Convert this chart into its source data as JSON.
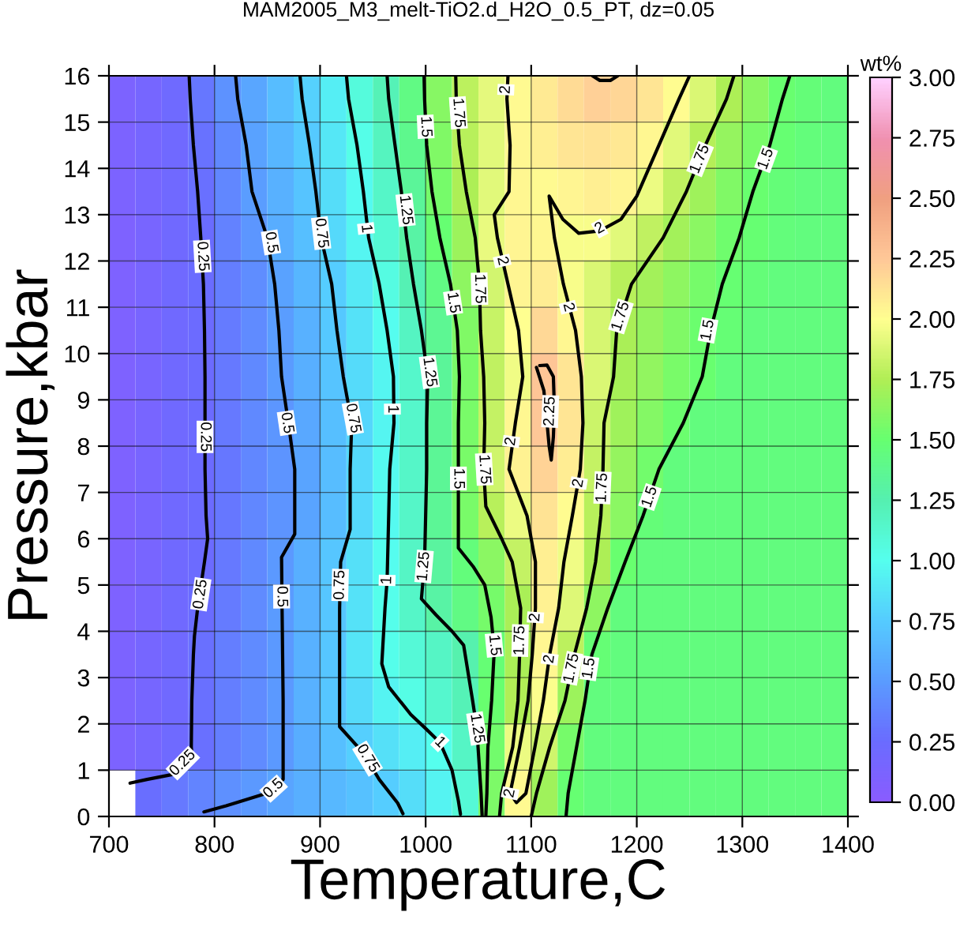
{
  "chart_data": {
    "type": "heatmap",
    "title": "MAM2005_M3_melt-TiO2.d_H2O_0.5_PT, dz=0.05",
    "xlabel": "Temperature,C",
    "ylabel": "Pressure,kbar",
    "clabel": "wt%",
    "x": [
      712.5,
      737.5,
      762.5,
      787.5,
      812.5,
      837.5,
      862.5,
      887.5,
      912.5,
      937.5,
      962.5,
      987.5,
      1012.5,
      1037.5,
      1062.5,
      1087.5,
      1112.5,
      1137.5,
      1162.5,
      1187.5,
      1212.5,
      1237.5,
      1262.5,
      1287.5,
      1312.5,
      1337.5,
      1362.5,
      1387.5
    ],
    "y": [
      15.5,
      14.5,
      13.5,
      12.5,
      11.5,
      10.5,
      9.5,
      8.5,
      7.5,
      6.5,
      5.5,
      4.5,
      3.5,
      2.5,
      1.5,
      0.5
    ],
    "cells": [
      [
        0.11,
        0.16,
        0.22,
        0.31,
        0.45,
        0.56,
        0.67,
        0.78,
        0.92,
        1.07,
        1.23,
        1.42,
        1.61,
        1.79,
        1.92,
        2.02,
        2.09,
        2.16,
        2.21,
        2.19,
        2.11,
        2.01,
        1.88,
        1.74,
        1.62,
        1.5,
        1.47,
        1.45
      ],
      [
        0.11,
        0.16,
        0.21,
        0.29,
        0.41,
        0.53,
        0.64,
        0.74,
        0.88,
        1.02,
        1.19,
        1.39,
        1.59,
        1.78,
        1.91,
        2.03,
        2.07,
        2.11,
        2.13,
        2.1,
        2.03,
        1.91,
        1.76,
        1.66,
        1.56,
        1.49,
        1.46,
        1.45
      ],
      [
        0.11,
        0.16,
        0.21,
        0.27,
        0.39,
        0.51,
        0.61,
        0.71,
        0.84,
        0.98,
        1.15,
        1.34,
        1.55,
        1.74,
        1.9,
        2.03,
        2.02,
        2.05,
        2.07,
        2.04,
        1.94,
        1.8,
        1.69,
        1.59,
        1.5,
        1.47,
        1.45,
        1.45
      ],
      [
        0.1,
        0.15,
        0.2,
        0.25,
        0.37,
        0.48,
        0.59,
        0.69,
        0.81,
        0.95,
        1.11,
        1.29,
        1.49,
        1.68,
        1.93,
        2.05,
        2.03,
        1.97,
        1.97,
        1.91,
        1.8,
        1.71,
        1.62,
        1.53,
        1.49,
        1.46,
        1.45,
        1.45
      ],
      [
        0.1,
        0.15,
        0.2,
        0.25,
        0.34,
        0.43,
        0.53,
        0.64,
        0.76,
        0.9,
        1.05,
        1.24,
        1.42,
        1.63,
        1.86,
        2.04,
        2.08,
        1.97,
        1.88,
        1.78,
        1.7,
        1.63,
        1.55,
        1.49,
        1.47,
        1.45,
        1.45,
        1.45
      ],
      [
        0.1,
        0.15,
        0.2,
        0.24,
        0.33,
        0.42,
        0.51,
        0.62,
        0.73,
        0.86,
        0.99,
        1.18,
        1.37,
        1.59,
        1.82,
        2.0,
        2.17,
        2.03,
        1.87,
        1.73,
        1.66,
        1.59,
        1.52,
        1.48,
        1.45,
        1.45,
        1.45,
        1.45
      ],
      [
        0.1,
        0.15,
        0.2,
        0.24,
        0.32,
        0.41,
        0.5,
        0.6,
        0.71,
        0.83,
        0.96,
        1.14,
        1.34,
        1.56,
        1.8,
        1.95,
        2.27,
        2.11,
        1.88,
        1.72,
        1.65,
        1.57,
        1.5,
        1.45,
        1.45,
        1.45,
        1.45,
        1.45
      ],
      [
        0.1,
        0.15,
        0.2,
        0.24,
        0.32,
        0.4,
        0.48,
        0.57,
        0.68,
        0.8,
        0.95,
        1.14,
        1.35,
        1.57,
        1.81,
        2.03,
        2.25,
        2.12,
        1.83,
        1.69,
        1.6,
        1.52,
        1.45,
        1.45,
        1.45,
        1.45,
        1.45,
        1.45
      ],
      [
        0.1,
        0.15,
        0.2,
        0.24,
        0.31,
        0.39,
        0.46,
        0.55,
        0.67,
        0.81,
        0.98,
        1.15,
        1.35,
        1.57,
        1.84,
        2.06,
        2.2,
        2.08,
        1.81,
        1.66,
        1.54,
        1.45,
        1.45,
        1.45,
        1.45,
        1.45,
        1.45,
        1.45
      ],
      [
        0.1,
        0.15,
        0.2,
        0.24,
        0.31,
        0.39,
        0.46,
        0.55,
        0.67,
        0.81,
        0.98,
        1.16,
        1.35,
        1.56,
        1.77,
        1.94,
        2.13,
        2.01,
        1.78,
        1.62,
        1.47,
        1.45,
        1.45,
        1.45,
        1.45,
        1.45,
        1.45,
        1.45
      ],
      [
        0.1,
        0.15,
        0.2,
        0.24,
        0.32,
        0.41,
        0.49,
        0.6,
        0.72,
        0.85,
        0.99,
        1.17,
        1.32,
        1.46,
        1.62,
        1.81,
        2.07,
        1.95,
        1.74,
        1.51,
        1.45,
        1.45,
        1.45,
        1.45,
        1.45,
        1.45,
        1.45,
        1.45
      ],
      [
        0.1,
        0.15,
        0.2,
        0.25,
        0.33,
        0.42,
        0.5,
        0.61,
        0.72,
        0.86,
        1.01,
        1.15,
        1.29,
        1.42,
        1.55,
        1.73,
        2.06,
        1.89,
        1.63,
        1.45,
        1.45,
        1.45,
        1.45,
        1.45,
        1.45,
        1.45,
        1.45,
        1.45
      ],
      [
        0.11,
        0.16,
        0.21,
        0.27,
        0.35,
        0.42,
        0.49,
        0.61,
        0.72,
        0.87,
        1.01,
        1.09,
        1.17,
        1.26,
        1.48,
        1.73,
        2.03,
        1.79,
        1.48,
        1.45,
        1.45,
        1.45,
        1.45,
        1.45,
        1.45,
        1.45,
        1.45,
        1.45
      ],
      [
        0.11,
        0.16,
        0.21,
        0.28,
        0.35,
        0.42,
        0.49,
        0.61,
        0.72,
        0.83,
        0.94,
        1.04,
        1.13,
        1.22,
        1.5,
        1.75,
        1.99,
        1.68,
        1.45,
        1.45,
        1.45,
        1.45,
        1.45,
        1.45,
        1.45,
        1.45,
        1.45,
        1.45
      ],
      [
        0.11,
        0.16,
        0.22,
        0.28,
        0.35,
        0.42,
        0.49,
        0.59,
        0.68,
        0.77,
        0.85,
        0.92,
        1.0,
        1.17,
        1.54,
        1.94,
        1.84,
        1.55,
        1.45,
        1.45,
        1.45,
        1.45,
        1.45,
        1.45,
        1.45,
        1.45,
        1.45,
        1.45
      ],
      [
        null,
        0.26,
        0.32,
        0.38,
        0.44,
        0.49,
        0.55,
        0.6,
        0.65,
        0.7,
        0.75,
        0.84,
        0.94,
        1.1,
        1.58,
        2.02,
        1.69,
        1.49,
        1.45,
        1.45,
        1.45,
        1.45,
        1.45,
        1.45,
        1.45,
        1.45,
        1.45,
        1.45
      ]
    ],
    "series": [
      {
        "type": "line",
        "color": "#000000",
        "x": [
          776,
          777,
          780,
          784,
          787,
          789.5,
          790.5,
          791,
          791,
          791,
          792,
          793.5,
          790.5,
          784,
          781,
          780,
          778.5,
          778,
          778.5,
          771,
          761,
          736,
          720
        ],
        "values": [
          16,
          15.5,
          14.5,
          13.5,
          12.5,
          11.5,
          10.5,
          9.5,
          8.5,
          7.5,
          6.5,
          6.0,
          5.5,
          4.5,
          3.9,
          3.5,
          2.5,
          1.5,
          1.37,
          1.14,
          0.91,
          0.8,
          0.72
        ]
      },
      {
        "type": "line",
        "color": "#000000",
        "x": [
          820,
          822,
          830,
          835.5,
          850,
          857,
          861,
          863.5,
          870,
          876,
          876,
          863.5,
          864,
          864.5,
          865,
          865,
          865,
          851,
          811,
          790
        ],
        "values": [
          16,
          15.5,
          14.5,
          13.5,
          12.5,
          11.5,
          10.5,
          9.5,
          8.5,
          7.5,
          6.1,
          5.6,
          4.5,
          3.5,
          2.5,
          1.5,
          0.8,
          0.51,
          0.23,
          0.1
        ]
      },
      {
        "type": "line",
        "color": "#000000",
        "x": [
          881,
          883,
          890,
          896,
          901,
          911,
          916,
          922,
          930,
          928.5,
          928.5,
          919.5,
          918.5,
          918.5,
          918.5,
          918.5,
          941,
          956,
          973.5,
          978.5
        ],
        "values": [
          16,
          15.5,
          14.5,
          13.5,
          12.5,
          11.5,
          10.5,
          9.5,
          8.5,
          7.5,
          6.2,
          5.5,
          4.5,
          3.5,
          2.5,
          1.94,
          1.37,
          0.8,
          0.29,
          0.06
        ]
      },
      {
        "type": "line",
        "color": "#000000",
        "x": [
          925,
          927,
          935,
          941,
          946,
          956,
          963.5,
          969.5,
          970,
          966,
          965,
          963.5,
          961.5,
          958.5,
          965,
          986,
          1000,
          1013.5,
          1025,
          1031,
          1033
        ],
        "values": [
          16,
          15.5,
          14.5,
          13.5,
          12.5,
          11.5,
          10.5,
          9.5,
          8.5,
          7.5,
          6.5,
          5.1,
          4.5,
          3.3,
          2.8,
          2.2,
          1.9,
          1.6,
          1.0,
          0.34,
          0.05
        ]
      },
      {
        "type": "line",
        "color": "#000000",
        "x": [
          963.5,
          965,
          971,
          977,
          982,
          988.5,
          996,
          1002,
          1001,
          1001,
          1000,
          999,
          996,
          1010,
          1025,
          1036,
          1044.5,
          1048.5,
          1052.5,
          1053.5
        ],
        "values": [
          16,
          15.5,
          14.5,
          13.5,
          12.5,
          11.5,
          10.5,
          9.5,
          8.5,
          7.5,
          6.5,
          5.5,
          4.7,
          4.35,
          4.0,
          3.7,
          2.5,
          1.9,
          0.5,
          0.02
        ]
      },
      {
        "type": "line",
        "color": "#000000",
        "x": [
          998.5,
          999,
          1001,
          1006,
          1013.5,
          1023.5,
          1030,
          1032,
          1031,
          1031,
          1031,
          1031,
          1045,
          1056,
          1062,
          1065,
          1062.5,
          1059,
          1058,
          1057
        ],
        "values": [
          16,
          15.5,
          14.5,
          13.5,
          12.5,
          11.5,
          10.5,
          9.5,
          8.5,
          7.5,
          6.5,
          5.8,
          5.4,
          5.0,
          4.3,
          3.6,
          2.5,
          1.5,
          0.5,
          0
        ]
      },
      {
        "type": "line",
        "color": "#000000",
        "x": [
          1028.5,
          1029,
          1032,
          1038.5,
          1047,
          1051,
          1052,
          1055,
          1056,
          1055,
          1057,
          1072,
          1082,
          1090,
          1089,
          1087.5,
          1082.5,
          1072,
          1070
        ],
        "values": [
          16,
          15.5,
          14.5,
          13.5,
          12.5,
          11.5,
          10.5,
          9.5,
          8.5,
          7.5,
          6.7,
          6.0,
          5.5,
          4.5,
          3.5,
          2.5,
          1.5,
          0.5,
          0
        ]
      },
      {
        "type": "line",
        "color": "#000000",
        "x": [
          1078,
          1077,
          1080,
          1079,
          1065,
          1068,
          1078,
          1088,
          1092,
          1085,
          1079,
          1096,
          1104,
          1104,
          1101,
          1097,
          1089,
          1080,
          1086,
          1095,
          1103.5,
          1111.5,
          1117.5,
          1126,
          1131,
          1139,
          1146.5,
          1149,
          1147.5,
          1142,
          1130.5,
          1122,
          1117,
          1130,
          1145,
          1165,
          1185,
          1200,
          1221,
          1240,
          1250
        ],
        "values": [
          16,
          15.5,
          14.5,
          13.5,
          13.0,
          12.5,
          11.5,
          10.5,
          9.5,
          8.5,
          7.5,
          6.5,
          5.5,
          4.5,
          3.5,
          2.5,
          1.5,
          0.5,
          0.3,
          0.5,
          1.5,
          2.5,
          3.5,
          4.5,
          5.5,
          6.5,
          7.5,
          8.5,
          9.5,
          10.5,
          11.5,
          12.5,
          13.4,
          12.9,
          12.6,
          12.65,
          12.9,
          13.4,
          14.5,
          15.5,
          16
        ]
      },
      {
        "type": "line",
        "color": "#000000",
        "x": [
          1105,
          1112,
          1115,
          1117,
          1119,
          1121,
          1122,
          1121,
          1115,
          1108
        ],
        "values": [
          9.7,
          9.2,
          8.5,
          8.0,
          7.7,
          8.2,
          8.8,
          9.5,
          9.75,
          9.74
        ]
      },
      {
        "type": "line",
        "color": "#000000",
        "x": [
          1158,
          1165,
          1175,
          1182
        ],
        "values": [
          16,
          15.9,
          15.9,
          16
        ]
      },
      {
        "type": "line",
        "color": "#000000",
        "x": [
          1292,
          1285,
          1265,
          1247,
          1225,
          1195,
          1181,
          1178,
          1169,
          1168,
          1166,
          1161,
          1152.5,
          1141,
          1132,
          1117.5,
          1105,
          1100
        ],
        "values": [
          16,
          15.5,
          14.5,
          13.5,
          12.5,
          11.5,
          10.5,
          9.5,
          8.5,
          7.5,
          6.5,
          5.5,
          4.5,
          3.5,
          2.5,
          1.5,
          0.5,
          0
        ]
      },
      {
        "type": "line",
        "color": "#000000",
        "x": [
          1345,
          1338,
          1326,
          1310,
          1297,
          1281,
          1270,
          1262,
          1244,
          1221,
          1206,
          1189,
          1172.5,
          1157.5,
          1151,
          1143,
          1135,
          1133
        ],
        "values": [
          16,
          15.5,
          14.5,
          13.5,
          12.5,
          11.5,
          10.5,
          9.5,
          8.5,
          7.5,
          6.5,
          5.5,
          4.5,
          3.5,
          2.5,
          1.5,
          0.5,
          0
        ]
      }
    ],
    "clim": [
      0,
      3
    ],
    "cticks": [
      {
        "value": 0,
        "label": "0.00"
      },
      {
        "value": 0.25,
        "label": "0.25"
      },
      {
        "value": 0.5,
        "label": "0.50"
      },
      {
        "value": 0.75,
        "label": "0.75"
      },
      {
        "value": 1,
        "label": "1.00"
      },
      {
        "value": 1.25,
        "label": "1.25"
      },
      {
        "value": 1.5,
        "label": "1.50"
      },
      {
        "value": 1.75,
        "label": "1.75"
      },
      {
        "value": 2,
        "label": "2.00"
      },
      {
        "value": 2.25,
        "label": "2.25"
      },
      {
        "value": 2.5,
        "label": "2.50"
      },
      {
        "value": 2.75,
        "label": "2.75"
      },
      {
        "value": 3,
        "label": "3.00"
      }
    ],
    "xlim": [
      700,
      1400
    ],
    "xticks": [
      700,
      800,
      900,
      1000,
      1100,
      1200,
      1300,
      1400
    ],
    "ylim": [
      0,
      16
    ],
    "yticks": [
      0,
      1,
      2,
      3,
      4,
      5,
      6,
      7,
      8,
      9,
      10,
      11,
      12,
      13,
      14,
      15,
      16
    ],
    "grid": true,
    "annotations": [
      {
        "text": "0.25",
        "x": 788.5,
        "y": 12.1
      },
      {
        "text": "0.5",
        "x": 853.5,
        "y": 12.4
      },
      {
        "text": "0.75",
        "x": 901,
        "y": 12.6
      },
      {
        "text": "1",
        "x": 943.5,
        "y": 12.7
      },
      {
        "text": "1.25",
        "x": 981,
        "y": 13.1
      },
      {
        "text": "1.5",
        "x": 1000,
        "y": 14.9
      },
      {
        "text": "1.75",
        "x": 1031,
        "y": 15.2
      },
      {
        "text": "2",
        "x": 1076,
        "y": 15.7
      },
      {
        "text": "1.75",
        "x": 1260,
        "y": 14.2
      },
      {
        "text": "1.5",
        "x": 1322.5,
        "y": 14.2
      },
      {
        "text": "2",
        "x": 1165,
        "y": 12.7
      },
      {
        "text": "2",
        "x": 1072.5,
        "y": 12.0
      },
      {
        "text": "1.5",
        "x": 1026,
        "y": 11.1
      },
      {
        "text": "1.75",
        "x": 1051,
        "y": 11.4
      },
      {
        "text": "2",
        "x": 1135,
        "y": 11.0
      },
      {
        "text": "1.75",
        "x": 1185,
        "y": 10.8
      },
      {
        "text": "1.5",
        "x": 1267.5,
        "y": 10.5
      },
      {
        "text": "1.25",
        "x": 1003.5,
        "y": 9.6
      },
      {
        "text": "2.25",
        "x": 1118,
        "y": 8.75
      },
      {
        "text": "0.25",
        "x": 791,
        "y": 8.2
      },
      {
        "text": "0.5",
        "x": 868.5,
        "y": 8.5
      },
      {
        "text": "0.75",
        "x": 931,
        "y": 8.6
      },
      {
        "text": "1",
        "x": 968.5,
        "y": 8.8
      },
      {
        "text": "2",
        "x": 1081,
        "y": 8.1
      },
      {
        "text": "1.5",
        "x": 1031,
        "y": 7.3
      },
      {
        "text": "1.75",
        "x": 1055.5,
        "y": 7.5
      },
      {
        "text": "2",
        "x": 1145,
        "y": 7.2
      },
      {
        "text": "1.75",
        "x": 1167.5,
        "y": 7.1
      },
      {
        "text": "1.5",
        "x": 1212.5,
        "y": 6.9
      },
      {
        "text": "0.25",
        "x": 787,
        "y": 4.8
      },
      {
        "text": "0.5",
        "x": 863.5,
        "y": 4.75
      },
      {
        "text": "0.75",
        "x": 919,
        "y": 5.0
      },
      {
        "text": "1",
        "x": 963.5,
        "y": 5.1
      },
      {
        "text": "1.25",
        "x": 998.5,
        "y": 5.4
      },
      {
        "text": "2",
        "x": 1104,
        "y": 4.3
      },
      {
        "text": "1.75",
        "x": 1089.5,
        "y": 3.8
      },
      {
        "text": "1.5",
        "x": 1065,
        "y": 3.7
      },
      {
        "text": "2",
        "x": 1117.5,
        "y": 3.4
      },
      {
        "text": "1.75",
        "x": 1138.5,
        "y": 3.2
      },
      {
        "text": "1.5",
        "x": 1155,
        "y": 3.2
      },
      {
        "text": "0.25",
        "x": 770,
        "y": 1.15
      },
      {
        "text": "0.5",
        "x": 856,
        "y": 0.6
      },
      {
        "text": "0.75",
        "x": 945,
        "y": 1.25
      },
      {
        "text": "1",
        "x": 1013.5,
        "y": 1.6
      },
      {
        "text": "1.25",
        "x": 1048.5,
        "y": 1.9
      },
      {
        "text": "2",
        "x": 1080,
        "y": 0.5
      }
    ]
  }
}
